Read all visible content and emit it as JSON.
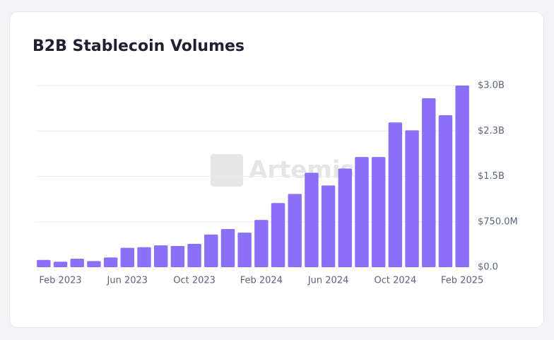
{
  "chart_data": {
    "type": "bar",
    "title": "B2B Stablecoin Volumes",
    "watermark": "Artemis",
    "categories": [
      null,
      "Feb 2023",
      null,
      null,
      null,
      "Jun 2023",
      null,
      null,
      null,
      "Oct 2023",
      null,
      null,
      null,
      "Feb 2024",
      null,
      null,
      null,
      "Jun 2024",
      null,
      null,
      null,
      "Oct 2024",
      null,
      null,
      null,
      "Feb 2025"
    ],
    "values": [
      120000000,
      90000000,
      140000000,
      100000000,
      160000000,
      320000000,
      330000000,
      360000000,
      350000000,
      385000000,
      540000000,
      630000000,
      570000000,
      780000000,
      1060000000,
      1210000000,
      1560000000,
      1350000000,
      1630000000,
      1820000000,
      1820000000,
      2390000000,
      2260000000,
      2790000000,
      2510000000,
      3000000000
    ],
    "color": "#8b6ff7",
    "ylim": [
      0,
      3000000000
    ],
    "yticks": [
      {
        "value": 0,
        "label": "$0.0"
      },
      {
        "value": 750000000,
        "label": "$750.0M"
      },
      {
        "value": 1500000000,
        "label": "$1.5B"
      },
      {
        "value": 2250000000,
        "label": "$2.3B"
      },
      {
        "value": 3000000000,
        "label": "$3.0B"
      }
    ],
    "grid": true
  }
}
